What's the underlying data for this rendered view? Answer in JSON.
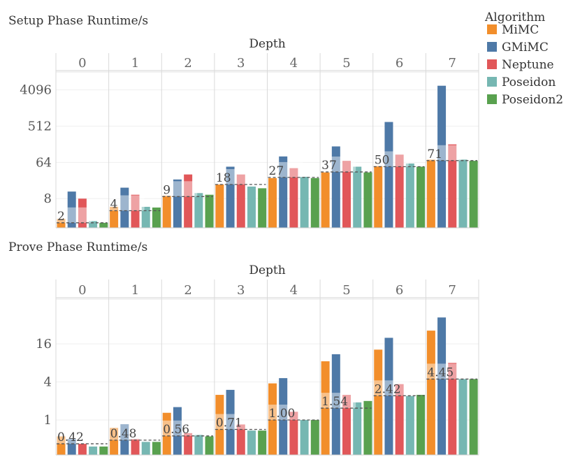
{
  "legend": {
    "title": "Algorithm",
    "items": [
      {
        "label": "MiMC",
        "color": "#F28E2B"
      },
      {
        "label": "GMiMC",
        "color": "#4E79A7"
      },
      {
        "label": "Neptune",
        "color": "#E15759"
      },
      {
        "label": "Poseidon",
        "color": "#76B7B2"
      },
      {
        "label": "Poseidon2",
        "color": "#59A14F"
      }
    ]
  },
  "chart_data": [
    {
      "type": "bar",
      "title": "Setup Phase Runtime/s",
      "facet_label": "Depth",
      "scale": "log2",
      "ylim": [
        1.5,
        11000
      ],
      "yticks": [
        8,
        64,
        512,
        4096
      ],
      "yticklabels": [
        "8",
        "64",
        "512",
        "4096"
      ],
      "categories": [
        "0",
        "1",
        "2",
        "3",
        "4",
        "5",
        "6",
        "7"
      ],
      "series": [
        {
          "name": "MiMC",
          "values": [
            2.5,
            5,
            9.5,
            18,
            26,
            36,
            52,
            75
          ]
        },
        {
          "name": "GMiMC",
          "values": [
            12,
            15,
            24,
            50,
            90,
            160,
            650,
            5200
          ]
        },
        {
          "name": "Neptune",
          "values": [
            8,
            10,
            32,
            32,
            46,
            70,
            100,
            180
          ]
        },
        {
          "name": "Poseidon",
          "values": [
            2.2,
            5,
            11,
            16,
            28,
            50,
            60,
            75
          ]
        },
        {
          "name": "Poseidon2",
          "values": [
            2,
            4.8,
            10,
            14.5,
            26,
            36,
            50,
            70
          ]
        }
      ],
      "reference_lines": [
        {
          "value": 2,
          "label": "2"
        },
        {
          "value": 4,
          "label": "4"
        },
        {
          "value": 9,
          "label": "9"
        },
        {
          "value": 18,
          "label": "18"
        },
        {
          "value": 27,
          "label": "27"
        },
        {
          "value": 37,
          "label": "37"
        },
        {
          "value": 50,
          "label": "50"
        },
        {
          "value": 71,
          "label": "71"
        }
      ]
    },
    {
      "type": "bar",
      "title": "Prove Phase Runtime/s",
      "facet_label": "Depth",
      "scale": "log2",
      "ylim": [
        0.28,
        80
      ],
      "yticks": [
        1,
        4,
        16
      ],
      "yticklabels": [
        "1",
        "4",
        "16"
      ],
      "categories": [
        "0",
        "1",
        "2",
        "3",
        "4",
        "5",
        "6",
        "7"
      ],
      "series": [
        {
          "name": "MiMC",
          "values": [
            0.55,
            0.75,
            1.3,
            2.5,
            3.8,
            8.5,
            13,
            26
          ]
        },
        {
          "name": "GMiMC",
          "values": [
            0.5,
            0.85,
            1.6,
            3,
            4.6,
            11,
            20,
            42
          ]
        },
        {
          "name": "Neptune",
          "values": [
            0.42,
            0.5,
            0.62,
            0.85,
            1.35,
            2.5,
            3.7,
            8
          ]
        },
        {
          "name": "Poseidon",
          "values": [
            0.38,
            0.45,
            0.58,
            0.68,
            1.0,
            1.9,
            2.4,
            4.45
          ]
        },
        {
          "name": "Poseidon2",
          "values": [
            0.38,
            0.45,
            0.55,
            0.68,
            1.0,
            2.0,
            2.5,
            4.45
          ]
        }
      ],
      "reference_lines": [
        {
          "value": 0.42,
          "label": "0.42"
        },
        {
          "value": 0.48,
          "label": "0.48"
        },
        {
          "value": 0.56,
          "label": "0.56"
        },
        {
          "value": 0.71,
          "label": "0.71"
        },
        {
          "value": 1.0,
          "label": "1.00"
        },
        {
          "value": 1.54,
          "label": "1.54"
        },
        {
          "value": 2.42,
          "label": "2.42"
        },
        {
          "value": 4.45,
          "label": "4.45"
        }
      ]
    }
  ]
}
